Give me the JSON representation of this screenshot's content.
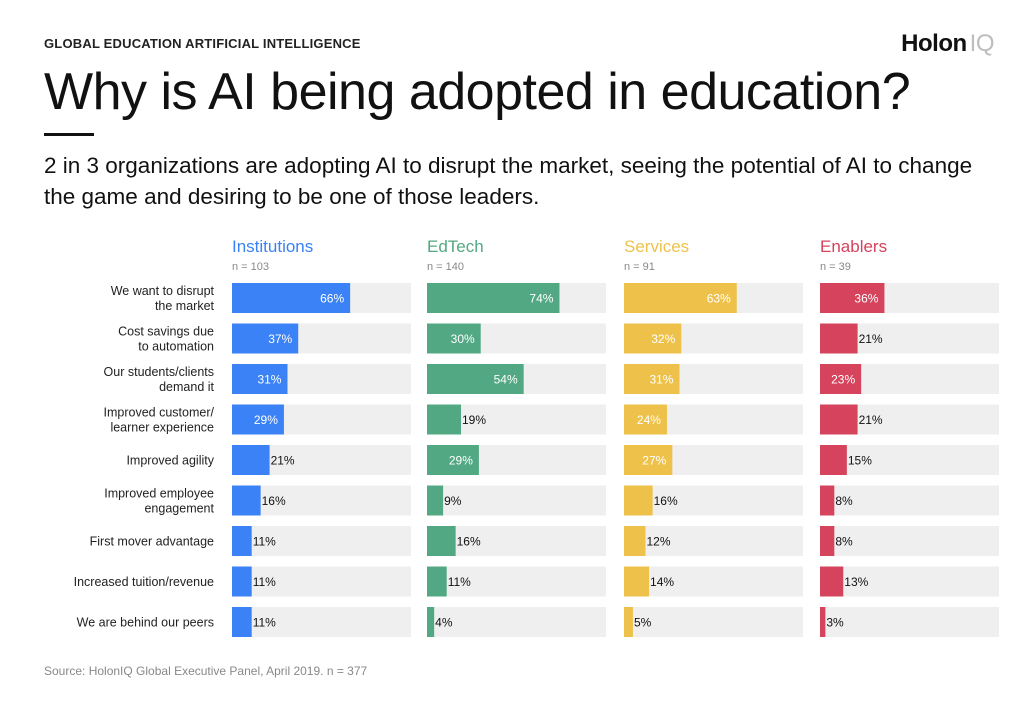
{
  "header": {
    "eyebrow": "GLOBAL EDUCATION ARTIFICIAL INTELLIGENCE",
    "logo_main": "Holon",
    "logo_suffix": "IQ"
  },
  "title": "Why is AI being adopted in education?",
  "subtitle": "2 in 3 organizations are adopting AI to disrupt the market, seeing the potential of AI to change the game and desiring to be one of those leaders.",
  "source": "Source: HolonIQ Global Executive Panel, April 2019. n = 377",
  "chart_data": {
    "type": "bar",
    "categories": [
      [
        "We want to disrupt",
        "the market"
      ],
      [
        "Cost savings due",
        "to automation"
      ],
      [
        "Our students/clients",
        "demand it"
      ],
      [
        "Improved customer/",
        "learner experience"
      ],
      [
        "Improved agility"
      ],
      [
        "Improved employee",
        "engagement"
      ],
      [
        "First mover advantage"
      ],
      [
        "Increased tuition/revenue"
      ],
      [
        "We are behind our peers"
      ]
    ],
    "value_suffix": "%",
    "xlim": [
      0,
      100
    ],
    "series": [
      {
        "name": "Institutions",
        "n_label": "n = 103",
        "color": "#3b82f6",
        "values": [
          66,
          37,
          31,
          29,
          21,
          16,
          11,
          11,
          11
        ]
      },
      {
        "name": "EdTech",
        "n_label": "n = 140",
        "color": "#52a882",
        "values": [
          74,
          30,
          54,
          19,
          29,
          9,
          16,
          11,
          4
        ]
      },
      {
        "name": "Services",
        "n_label": "n = 91",
        "color": "#eec24a",
        "values": [
          63,
          32,
          31,
          24,
          27,
          16,
          12,
          14,
          5
        ]
      },
      {
        "name": "Enablers",
        "n_label": "n = 39",
        "color": "#d5435c",
        "values": [
          36,
          21,
          23,
          21,
          15,
          8,
          8,
          13,
          3
        ]
      }
    ],
    "track_color": "#efefef"
  }
}
